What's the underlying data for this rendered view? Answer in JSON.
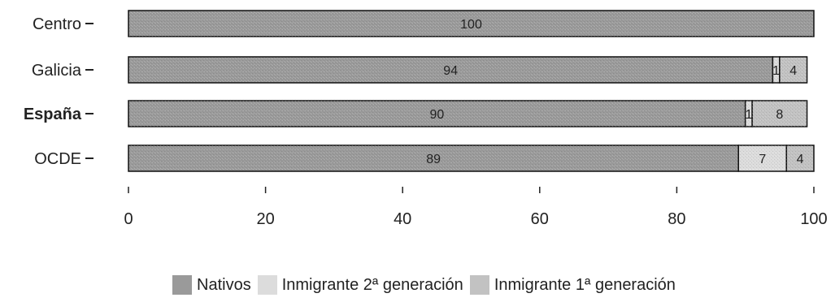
{
  "chart_data": {
    "type": "bar",
    "orientation": "horizontal",
    "stacked": true,
    "categories": [
      "Centro",
      "Galicia",
      "España",
      "OCDE"
    ],
    "bold_categories": [
      "España"
    ],
    "series": [
      {
        "name": "Nativos",
        "values": [
          100,
          94,
          90,
          89
        ],
        "labels": [
          "100",
          "94",
          "90",
          "89"
        ],
        "color": "#9a9a9a"
      },
      {
        "name": "Inmigrante 2ª generación",
        "values": [
          0,
          1,
          1,
          7
        ],
        "labels": [
          "",
          "1",
          "1",
          "7"
        ],
        "color": "#dcdcdc"
      },
      {
        "name": "Inmigrante 1ª generación",
        "values": [
          0,
          4,
          8,
          4
        ],
        "labels": [
          "",
          "4",
          "8",
          "4"
        ],
        "color": "#c2c2c2"
      }
    ],
    "xlim": [
      0,
      100
    ],
    "xticks": [
      "0",
      "20",
      "40",
      "60",
      "80",
      "100"
    ],
    "grid": false,
    "legend_position": "bottom"
  }
}
